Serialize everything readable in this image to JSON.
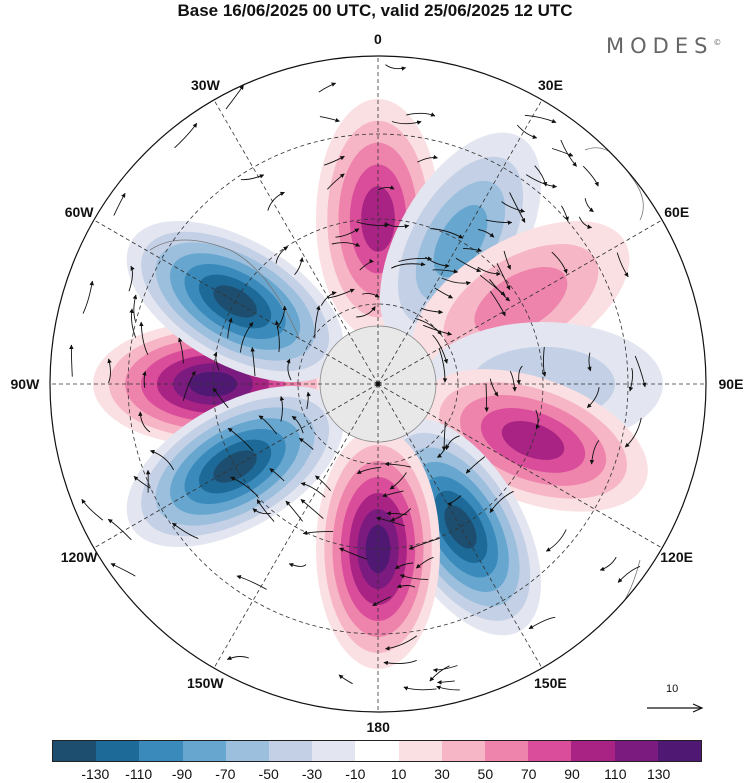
{
  "title": "Base 16/06/2025 00 UTC, valid 25/06/2025 12 UTC",
  "logo": "MODES",
  "logo_mark": "©",
  "longitude_labels": [
    "0",
    "30E",
    "60E",
    "90E",
    "120E",
    "150E",
    "180",
    "150W",
    "120W",
    "90W",
    "60W",
    "30W"
  ],
  "reference_vector": "10",
  "colorbar": {
    "ticks": [
      "-130",
      "-110",
      "-90",
      "-70",
      "-50",
      "-30",
      "-10",
      "10",
      "30",
      "50",
      "70",
      "90",
      "110",
      "130"
    ],
    "colors": [
      "#1d4e6f",
      "#1d6a98",
      "#3a8bbb",
      "#67a6cf",
      "#9cbfde",
      "#c3d0e6",
      "#e3e6f0",
      "#ffffff",
      "#fbe0e3",
      "#f6b6c6",
      "#ee84ac",
      "#d94d9a",
      "#a82383",
      "#7b1b80",
      "#4f1873"
    ]
  },
  "anomalies": [
    {
      "lon": -90,
      "sign": "positive",
      "level": 6
    },
    {
      "lon": -60,
      "sign": "negative",
      "level": 6
    },
    {
      "lon": -120,
      "sign": "negative",
      "level": 6
    },
    {
      "lon": 0,
      "sign": "positive",
      "level": 4
    },
    {
      "lon": 30,
      "sign": "negative",
      "level": 3
    },
    {
      "lon": 60,
      "sign": "positive",
      "level": 2
    },
    {
      "lon": 90,
      "sign": "negative",
      "level": 1
    },
    {
      "lon": 110,
      "sign": "positive",
      "level": 4
    },
    {
      "lon": 150,
      "sign": "negative",
      "level": 6
    },
    {
      "lon": 180,
      "sign": "positive",
      "level": 6
    }
  ]
}
